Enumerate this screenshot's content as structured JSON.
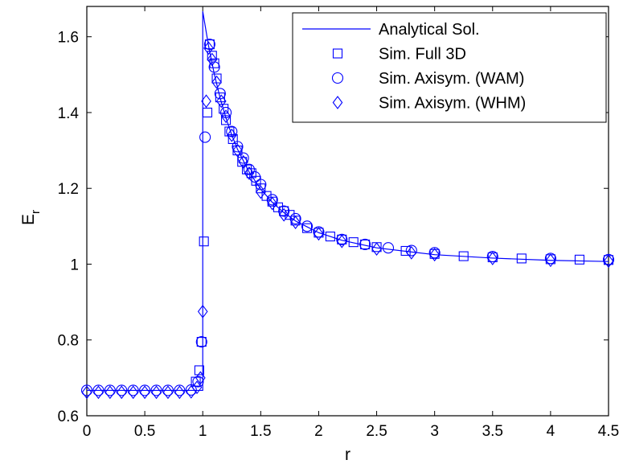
{
  "chart_data": {
    "type": "line",
    "title": "",
    "xlabel": "r",
    "ylabel": "E",
    "ylabel_subscript": "r",
    "xlim": [
      0,
      4.5
    ],
    "ylim": [
      0.6,
      1.68
    ],
    "xticks": [
      0,
      0.5,
      1,
      1.5,
      2,
      2.5,
      3,
      3.5,
      4,
      4.5
    ],
    "yticks": [
      0.6,
      0.8,
      1,
      1.2,
      1.4,
      1.6
    ],
    "xtick_labels": [
      "0",
      "0.5",
      "1",
      "1.5",
      "2",
      "2.5",
      "3",
      "3.5",
      "4",
      "4.5"
    ],
    "ytick_labels": [
      "0.6",
      "0.8",
      "1",
      "1.2",
      "1.4",
      "1.6"
    ],
    "grid": false,
    "legend_position": "top-right",
    "color": "#0000ff",
    "series": [
      {
        "name": "Analytical Sol.",
        "style": "line",
        "x": [
          0,
          1,
          1,
          1.05,
          1.1,
          1.15,
          1.2,
          1.25,
          1.3,
          1.4,
          1.5,
          1.6,
          1.7,
          1.8,
          2.0,
          2.2,
          2.5,
          3.0,
          3.5,
          4.0,
          4.5
        ],
        "y": [
          0.667,
          0.667,
          1.667,
          1.576,
          1.501,
          1.438,
          1.386,
          1.341,
          1.303,
          1.243,
          1.198,
          1.163,
          1.136,
          1.114,
          1.083,
          1.063,
          1.043,
          1.025,
          1.016,
          1.01,
          1.007
        ]
      },
      {
        "name": "Sim. Full 3D",
        "style": "square",
        "x": [
          0.94,
          0.97,
          0.99,
          1.01,
          1.04,
          1.06,
          1.08,
          1.1,
          1.12,
          1.15,
          1.18,
          1.2,
          1.23,
          1.26,
          1.3,
          1.34,
          1.38,
          1.42,
          1.46,
          1.5,
          1.55,
          1.6,
          1.65,
          1.7,
          1.75,
          1.8,
          1.9,
          2.0,
          2.1,
          2.2,
          2.3,
          2.4,
          2.5,
          2.75,
          3.0,
          3.25,
          3.5,
          3.75,
          4.0,
          4.25,
          4.5
        ],
        "y": [
          0.69,
          0.72,
          0.795,
          1.06,
          1.4,
          1.58,
          1.55,
          1.53,
          1.49,
          1.44,
          1.41,
          1.38,
          1.35,
          1.33,
          1.3,
          1.27,
          1.25,
          1.24,
          1.22,
          1.2,
          1.18,
          1.165,
          1.15,
          1.14,
          1.13,
          1.115,
          1.095,
          1.083,
          1.073,
          1.065,
          1.058,
          1.052,
          1.045,
          1.035,
          1.027,
          1.021,
          1.018,
          1.015,
          1.013,
          1.012,
          1.011
        ]
      },
      {
        "name": "Sim. Axisym. (WAM)",
        "style": "circle",
        "x": [
          0,
          0.1,
          0.2,
          0.3,
          0.4,
          0.5,
          0.6,
          0.7,
          0.8,
          0.9,
          0.96,
          0.99,
          1.02,
          1.06,
          1.1,
          1.15,
          1.2,
          1.25,
          1.3,
          1.35,
          1.4,
          1.45,
          1.5,
          1.6,
          1.7,
          1.8,
          1.9,
          2.0,
          2.2,
          2.4,
          2.6,
          2.8,
          3.0,
          3.5,
          4.0,
          4.5
        ],
        "y": [
          0.667,
          0.667,
          0.667,
          0.667,
          0.667,
          0.667,
          0.667,
          0.667,
          0.667,
          0.668,
          0.69,
          0.795,
          1.335,
          1.58,
          1.52,
          1.45,
          1.4,
          1.35,
          1.31,
          1.28,
          1.25,
          1.23,
          1.21,
          1.17,
          1.14,
          1.12,
          1.1,
          1.085,
          1.065,
          1.052,
          1.043,
          1.036,
          1.03,
          1.02,
          1.015,
          1.012
        ]
      },
      {
        "name": "Sim. Axisym. (WHM)",
        "style": "diamond",
        "x": [
          0,
          0.1,
          0.2,
          0.3,
          0.4,
          0.5,
          0.6,
          0.7,
          0.8,
          0.9,
          0.95,
          0.98,
          1.0,
          1.03,
          1.05,
          1.08,
          1.12,
          1.16,
          1.2,
          1.25,
          1.3,
          1.35,
          1.4,
          1.5,
          1.6,
          1.7,
          1.8,
          2.0,
          2.2,
          2.5,
          2.8,
          3.0,
          3.5,
          4.0,
          4.5
        ],
        "y": [
          0.662,
          0.662,
          0.662,
          0.662,
          0.662,
          0.662,
          0.662,
          0.662,
          0.662,
          0.663,
          0.675,
          0.7,
          0.875,
          1.43,
          1.57,
          1.54,
          1.48,
          1.43,
          1.39,
          1.34,
          1.3,
          1.27,
          1.24,
          1.19,
          1.16,
          1.13,
          1.11,
          1.08,
          1.06,
          1.04,
          1.03,
          1.025,
          1.015,
          1.01,
          1.008
        ]
      }
    ]
  }
}
